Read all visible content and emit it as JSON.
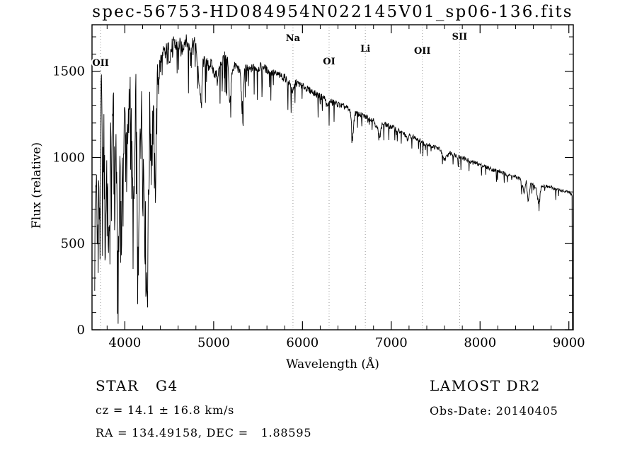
{
  "header": {
    "title": "spec-56753-HD084954N022145V01_sp06-136.fits"
  },
  "footer": {
    "class_label": "STAR   G4",
    "survey": "LAMOST DR2",
    "cz": "cz = 14.1 ± 16.8 km/s",
    "obs_date": "Obs-Date: 20140405",
    "coords": "RA = 134.49158, DEC =   1.88595"
  },
  "chart_data": {
    "type": "line",
    "title": "spec-56753-HD084954N022145V01_sp06-136.fits",
    "xlabel": "Wavelength (Å)",
    "ylabel": "Flux (relative)",
    "xlim": [
      3630,
      9050
    ],
    "ylim": [
      0,
      1770
    ],
    "x_major_ticks": [
      4000,
      5000,
      6000,
      7000,
      8000,
      9000
    ],
    "x_minor_step": 200,
    "y_major_ticks": [
      0,
      500,
      1000,
      1500
    ],
    "y_minor_step": 100,
    "grid": false,
    "legend": "none",
    "line_color": "#000000",
    "marker_line_color": "#999999",
    "background": "#ffffff",
    "line_markers": [
      {
        "label": "OII",
        "wavelength": 3727,
        "label_y": 93
      },
      {
        "label": "Na",
        "wavelength": 5893,
        "label_y": 58
      },
      {
        "label": "OI",
        "wavelength": 6300,
        "label_y": 91
      },
      {
        "label": "Li",
        "wavelength": 6708,
        "label_y": 73
      },
      {
        "label": "OII",
        "wavelength": 7350,
        "label_y": 76
      },
      {
        "label": "SII",
        "wavelength": 7770,
        "label_y": 56
      }
    ],
    "series": [
      {
        "name": "spectrum",
        "anchors": [
          [
            3660,
            480
          ],
          [
            3675,
            950
          ],
          [
            3690,
            430
          ],
          [
            3705,
            860
          ],
          [
            3720,
            470
          ],
          [
            3735,
            1450
          ],
          [
            3750,
            700
          ],
          [
            3765,
            1180
          ],
          [
            3780,
            480
          ],
          [
            3795,
            980
          ],
          [
            3810,
            620
          ],
          [
            3825,
            420
          ],
          [
            3840,
            1080
          ],
          [
            3855,
            880
          ],
          [
            3870,
            1500
          ],
          [
            3885,
            600
          ],
          [
            3900,
            1130
          ],
          [
            3915,
            400
          ],
          [
            3930,
            340
          ],
          [
            3945,
            1080
          ],
          [
            3960,
            500
          ],
          [
            3975,
            880
          ],
          [
            4000,
            1240
          ],
          [
            4030,
            1000
          ],
          [
            4060,
            1430
          ],
          [
            4085,
            800
          ],
          [
            4101,
            640
          ],
          [
            4125,
            1340
          ],
          [
            4150,
            180
          ],
          [
            4175,
            1390
          ],
          [
            4200,
            1090
          ],
          [
            4227,
            700
          ],
          [
            4250,
            190
          ],
          [
            4280,
            1240
          ],
          [
            4300,
            1060
          ],
          [
            4320,
            1290
          ],
          [
            4340,
            820
          ],
          [
            4365,
            1440
          ],
          [
            4400,
            1540
          ],
          [
            4450,
            1590
          ],
          [
            4500,
            1610
          ],
          [
            4550,
            1640
          ],
          [
            4600,
            1670
          ],
          [
            4640,
            1620
          ],
          [
            4680,
            1690
          ],
          [
            4710,
            1650
          ],
          [
            4740,
            1630
          ],
          [
            4770,
            1680
          ],
          [
            4800,
            1640
          ],
          [
            4830,
            1470
          ],
          [
            4861,
            1310
          ],
          [
            4880,
            1550
          ],
          [
            4910,
            1560
          ],
          [
            4940,
            1530
          ],
          [
            4970,
            1545
          ],
          [
            5000,
            1495
          ],
          [
            5040,
            1475
          ],
          [
            5080,
            1545
          ],
          [
            5120,
            1590
          ],
          [
            5160,
            1550
          ],
          [
            5180,
            1310
          ],
          [
            5210,
            1515
          ],
          [
            5250,
            1535
          ],
          [
            5300,
            1495
          ],
          [
            5320,
            1270
          ],
          [
            5350,
            1525
          ],
          [
            5400,
            1505
          ],
          [
            5450,
            1525
          ],
          [
            5500,
            1515
          ],
          [
            5550,
            1535
          ],
          [
            5600,
            1505
          ],
          [
            5650,
            1495
          ],
          [
            5700,
            1485
          ],
          [
            5750,
            1475
          ],
          [
            5800,
            1465
          ],
          [
            5860,
            1425
          ],
          [
            5893,
            1375
          ],
          [
            5920,
            1435
          ],
          [
            5960,
            1425
          ],
          [
            6000,
            1415
          ],
          [
            6050,
            1398
          ],
          [
            6100,
            1385
          ],
          [
            6150,
            1368
          ],
          [
            6200,
            1355
          ],
          [
            6250,
            1345
          ],
          [
            6280,
            1290
          ],
          [
            6310,
            1330
          ],
          [
            6350,
            1318
          ],
          [
            6400,
            1308
          ],
          [
            6450,
            1298
          ],
          [
            6500,
            1288
          ],
          [
            6540,
            1268
          ],
          [
            6563,
            1105
          ],
          [
            6590,
            1258
          ],
          [
            6650,
            1248
          ],
          [
            6700,
            1238
          ],
          [
            6750,
            1228
          ],
          [
            6800,
            1218
          ],
          [
            6850,
            1160
          ],
          [
            6870,
            1128
          ],
          [
            6900,
            1198
          ],
          [
            6950,
            1188
          ],
          [
            7000,
            1178
          ],
          [
            7050,
            1168
          ],
          [
            7100,
            1148
          ],
          [
            7150,
            1138
          ],
          [
            7180,
            1100
          ],
          [
            7210,
            1128
          ],
          [
            7250,
            1118
          ],
          [
            7300,
            1108
          ],
          [
            7350,
            1088
          ],
          [
            7400,
            1078
          ],
          [
            7450,
            1068
          ],
          [
            7500,
            1058
          ],
          [
            7550,
            1048
          ],
          [
            7590,
            988
          ],
          [
            7620,
            1000
          ],
          [
            7650,
            1028
          ],
          [
            7700,
            1018
          ],
          [
            7750,
            1008
          ],
          [
            7800,
            998
          ],
          [
            7850,
            988
          ],
          [
            7900,
            978
          ],
          [
            7950,
            968
          ],
          [
            8000,
            958
          ],
          [
            8050,
            948
          ],
          [
            8100,
            938
          ],
          [
            8150,
            928
          ],
          [
            8200,
            922
          ],
          [
            8250,
            912
          ],
          [
            8300,
            902
          ],
          [
            8350,
            893
          ],
          [
            8400,
            887
          ],
          [
            8450,
            878
          ],
          [
            8498,
            798
          ],
          [
            8520,
            858
          ],
          [
            8542,
            738
          ],
          [
            8570,
            852
          ],
          [
            8600,
            843
          ],
          [
            8630,
            818
          ],
          [
            8662,
            728
          ],
          [
            8690,
            838
          ],
          [
            8750,
            832
          ],
          [
            8800,
            826
          ],
          [
            8850,
            818
          ],
          [
            8900,
            810
          ],
          [
            8950,
            803
          ],
          [
            9000,
            796
          ],
          [
            9020,
            790
          ],
          [
            9038,
            775
          ],
          [
            9040,
            0
          ]
        ]
      }
    ],
    "noise_profile": [
      [
        3650,
        190
      ],
      [
        4150,
        210
      ],
      [
        4400,
        90
      ],
      [
        4700,
        40
      ],
      [
        5300,
        26
      ],
      [
        6000,
        20
      ],
      [
        7000,
        15
      ],
      [
        8200,
        11
      ],
      [
        9045,
        9
      ]
    ],
    "spike_profile": [
      [
        4400,
        260
      ],
      [
        5000,
        240
      ],
      [
        5800,
        200
      ],
      [
        6500,
        130
      ],
      [
        7500,
        80
      ],
      [
        9045,
        55
      ]
    ]
  }
}
